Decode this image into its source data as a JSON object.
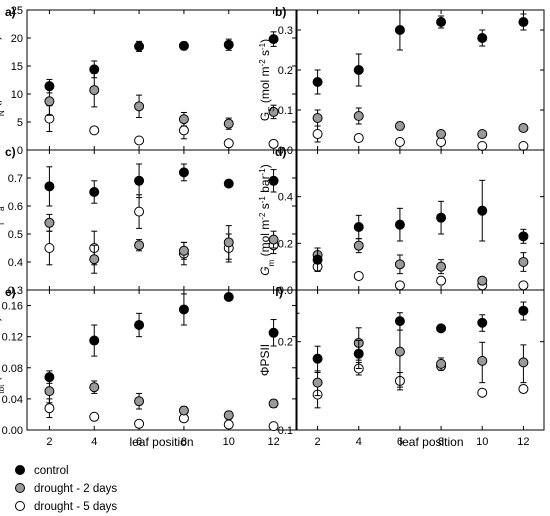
{
  "figure": {
    "x_label": "leaf position",
    "x_ticks": [
      2,
      4,
      6,
      8,
      10,
      12
    ],
    "legend": [
      {
        "label": "control",
        "color": "#000000"
      },
      {
        "label": "drought - 2 days",
        "color": "#9a9a9a"
      },
      {
        "label": "drought - 5 days",
        "color": "#ffffff"
      }
    ]
  },
  "chart_data": [
    {
      "id": "a",
      "panel_label": "a)",
      "type": "scatter",
      "ylabel_html": "<tspan font-style='italic'>P</tspan><tspan baseline-shift='sub' font-size='8'>N</tspan><tspan> (µmol m</tspan><tspan baseline-shift='super' font-size='8'>-2</tspan><tspan> s</tspan><tspan baseline-shift='super' font-size='8'>-1</tspan><tspan>)</tspan>",
      "ylim": [
        0,
        25
      ],
      "scale": "linear",
      "y_ticks": [
        0,
        5,
        10,
        15,
        20,
        25
      ],
      "y_tick_labels": [
        "0",
        "5",
        "10",
        "15",
        "20",
        "25"
      ],
      "x": [
        2,
        4,
        6,
        8,
        10,
        12
      ],
      "series": [
        {
          "values": [
            11.4,
            14.4,
            18.5,
            18.6,
            18.8,
            19.8
          ],
          "err": [
            1.2,
            1.5,
            0.9,
            0.7,
            1.0,
            1.3
          ]
        },
        {
          "values": [
            8.7,
            10.7,
            7.8,
            5.5,
            4.7,
            6.8
          ],
          "err": [
            2.5,
            3.0,
            2.0,
            1.2,
            1.0,
            1.2
          ]
        },
        {
          "values": [
            5.6,
            3.5,
            1.7,
            3.5,
            1.2,
            1.1
          ],
          "err": [
            2.3,
            0.4,
            0.3,
            1.5,
            0.3,
            0.2
          ]
        }
      ]
    },
    {
      "id": "b",
      "panel_label": "b)",
      "type": "scatter",
      "ylabel_html": "<tspan>G</tspan><tspan baseline-shift='sub' font-size='8'>S</tspan><tspan> (mol m</tspan><tspan baseline-shift='super' font-size='8'>-2</tspan><tspan> s</tspan><tspan baseline-shift='super' font-size='8'>-1</tspan><tspan>)</tspan>",
      "ylim": [
        0,
        0.35
      ],
      "scale": "linear",
      "y_ticks": [
        0,
        0.1,
        0.2,
        0.3
      ],
      "y_tick_labels": [
        "0.0",
        "0.1",
        "0.2",
        "0.3"
      ],
      "x": [
        2,
        4,
        6,
        8,
        10,
        12
      ],
      "series": [
        {
          "values": [
            0.17,
            0.2,
            0.3,
            0.32,
            0.28,
            0.32
          ],
          "err": [
            0.03,
            0.04,
            0.05,
            0.015,
            0.02,
            0.02
          ]
        },
        {
          "values": [
            0.08,
            0.085,
            0.06,
            0.04,
            0.04,
            0.055
          ],
          "err": [
            0.02,
            0.02,
            0.01,
            0.005,
            0.005,
            0.005
          ]
        },
        {
          "values": [
            0.04,
            0.03,
            0.02,
            0.02,
            0.01,
            0.01
          ],
          "err": [
            0.02,
            0.005,
            0.005,
            0.005,
            0.003,
            0.003
          ]
        }
      ]
    },
    {
      "id": "c",
      "panel_label": "c)",
      "type": "scatter",
      "ylabel_html": "<tspan font-style='italic'>C</tspan><tspan baseline-shift='sub' font-size='8'>i</tspan><tspan>/</tspan><tspan font-style='italic'>C</tspan><tspan baseline-shift='sub' font-size='8'>a</tspan>",
      "ylim": [
        0.3,
        0.8
      ],
      "scale": "linear",
      "y_ticks": [
        0.3,
        0.4,
        0.5,
        0.6,
        0.7
      ],
      "y_tick_labels": [
        "0.3",
        "0.4",
        "0.5",
        "0.6",
        "0.7"
      ],
      "x": [
        2,
        4,
        6,
        8,
        10,
        12
      ],
      "series": [
        {
          "values": [
            0.67,
            0.65,
            0.69,
            0.72,
            0.68,
            0.69
          ],
          "err": [
            0.07,
            0.04,
            0.06,
            0.03,
            0.005,
            0.04
          ]
        },
        {
          "values": [
            0.54,
            0.41,
            0.46,
            0.44,
            0.47,
            0.48
          ],
          "err": [
            0.03,
            0.05,
            0.02,
            0.03,
            0.06,
            0.03
          ]
        },
        {
          "values": [
            0.45,
            0.45,
            0.58,
            0.43,
            0.45,
            0.46
          ],
          "err": [
            0.06,
            0.06,
            0.06,
            0.04,
            0.05,
            0.03
          ]
        }
      ]
    },
    {
      "id": "d",
      "panel_label": "d)",
      "type": "scatter",
      "ylabel_html": "<tspan font-style='italic'>G</tspan><tspan baseline-shift='sub' font-size='8'>m</tspan><tspan> (mol m</tspan><tspan baseline-shift='super' font-size='8'>-2</tspan><tspan> s</tspan><tspan baseline-shift='super' font-size='8'>-1</tspan><tspan> bar</tspan><tspan baseline-shift='super' font-size='8'>-1</tspan><tspan>)</tspan>",
      "ylim": [
        0,
        0.6
      ],
      "scale": "linear",
      "y_ticks": [
        0,
        0.2,
        0.4
      ],
      "y_tick_labels": [
        "0.0",
        "0.2",
        "0.4"
      ],
      "x": [
        2,
        4,
        6,
        8,
        10,
        12
      ],
      "series": [
        {
          "values": [
            0.13,
            0.27,
            0.28,
            0.31,
            0.34,
            0.23
          ],
          "err": [
            0.05,
            0.05,
            0.07,
            0.07,
            0.13,
            0.03
          ]
        },
        {
          "values": [
            0.15,
            0.19,
            0.11,
            0.1,
            0.04,
            0.12
          ],
          "err": [
            0.03,
            0.03,
            0.04,
            0.03,
            0.01,
            0.04
          ]
        },
        {
          "values": [
            0.1,
            0.06,
            0.02,
            0.04,
            0.02,
            0.02
          ],
          "err": [
            0.02,
            0.015,
            0.005,
            0.01,
            0.005,
            0.003
          ]
        }
      ]
    },
    {
      "id": "e",
      "panel_label": "e)",
      "type": "scatter",
      "ylabel_html": "<tspan font-style='italic'>G</tspan><tspan baseline-shift='sub' font-size='8'>tot</tspan><tspan> (mol m</tspan><tspan baseline-shift='super' font-size='8'>-2</tspan><tspan> s</tspan><tspan baseline-shift='super' font-size='8'>-1</tspan><tspan>)</tspan>",
      "ylim": [
        0,
        0.18
      ],
      "scale": "linear",
      "y_ticks": [
        0,
        0.04,
        0.08,
        0.12,
        0.16
      ],
      "y_tick_labels": [
        "0.00",
        "0.04",
        "0.08",
        "0.12",
        "0.16"
      ],
      "x": [
        2,
        4,
        6,
        8,
        10,
        12
      ],
      "series": [
        {
          "values": [
            0.068,
            0.115,
            0.135,
            0.155,
            0.171,
            0.125
          ],
          "err": [
            0.008,
            0.02,
            0.015,
            0.02,
            0.002,
            0.017
          ]
        },
        {
          "values": [
            0.05,
            0.055,
            0.037,
            0.025,
            0.019,
            0.034
          ],
          "err": [
            0.015,
            0.008,
            0.01,
            0.005,
            0.005,
            0.005
          ]
        },
        {
          "values": [
            0.028,
            0.017,
            0.008,
            0.015,
            0.007,
            0.005
          ],
          "err": [
            0.012,
            0.002,
            0.002,
            0.003,
            0.002,
            0.001
          ]
        }
      ]
    },
    {
      "id": "f",
      "panel_label": "f)",
      "type": "scatter",
      "ylabel_html": "<tspan>ΦPSII</tspan>",
      "ylim": [
        0.1,
        0.3
      ],
      "scale": "log",
      "y_ticks": [
        0.1,
        0.2
      ],
      "y_tick_labels": [
        "0.1",
        "0.2"
      ],
      "x": [
        2,
        4,
        6,
        8,
        10,
        12
      ],
      "series": [
        {
          "values": [
            0.175,
            0.182,
            0.235,
            0.222,
            0.232,
            0.255
          ],
          "err": [
            0.018,
            0.02,
            0.016,
            0.002,
            0.015,
            0.018
          ]
        },
        {
          "values": [
            0.145,
            0.198,
            0.185,
            0.168,
            0.172,
            0.17
          ],
          "err": [
            0.014,
            0.025,
            0.045,
            0.008,
            0.027,
            0.025
          ]
        },
        {
          "values": [
            0.132,
            0.162,
            0.147,
            0.165,
            0.134,
            0.138
          ],
          "err": [
            0.013,
            0.008,
            0.01,
            0.005,
            0.003,
            0.004
          ]
        }
      ]
    }
  ]
}
